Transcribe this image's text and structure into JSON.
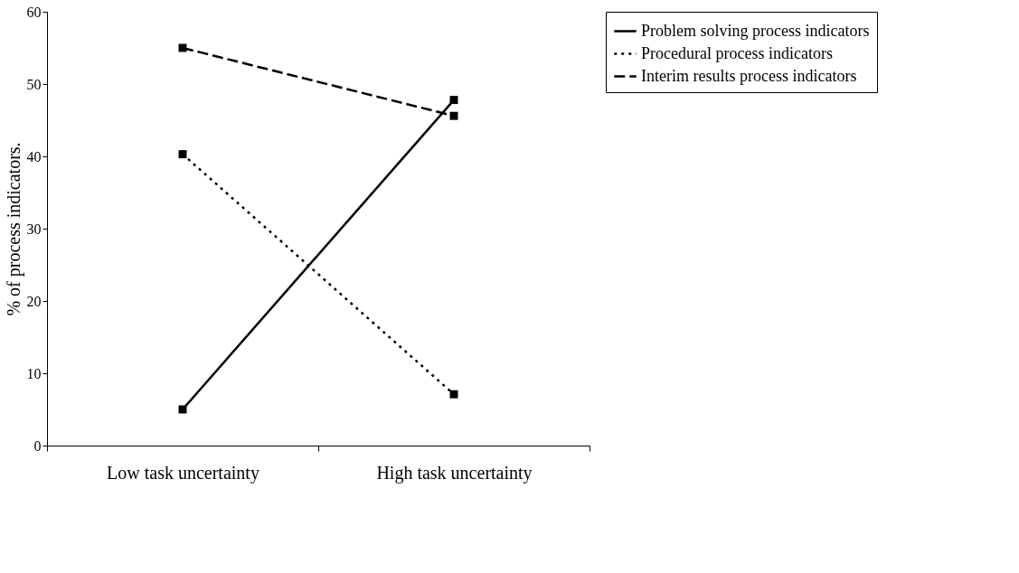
{
  "chart_data": {
    "type": "line",
    "ylabel": "% of process indicators.",
    "categories": [
      "Low task uncertainty",
      "High task uncertainty"
    ],
    "series": [
      {
        "name": "Problem solving process indicators",
        "color": "#000000",
        "values": [
          5,
          47.8
        ],
        "line_style": "solid"
      },
      {
        "name": "Procedural process indicators",
        "color": "#000000",
        "values": [
          40.3,
          7.1
        ],
        "line_style": "dotted"
      },
      {
        "name": "Interim results process indicators",
        "color": "#000000",
        "values": [
          55,
          45.6
        ],
        "line_style": "dashed"
      }
    ],
    "ylim": [
      0,
      60
    ],
    "yticks": [
      0,
      10,
      20,
      30,
      40,
      50,
      60
    ],
    "grid": false,
    "legend": "right",
    "marker": "square"
  }
}
